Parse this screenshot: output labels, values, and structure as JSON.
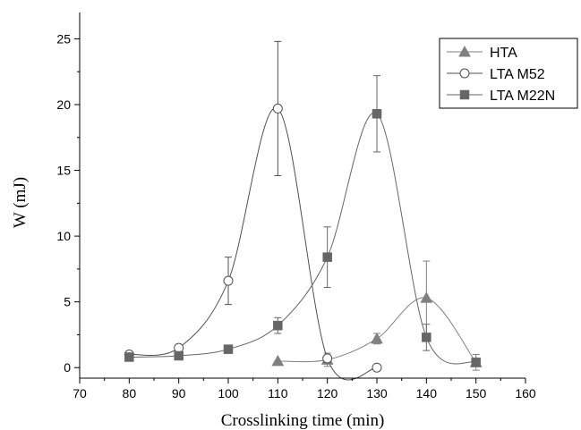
{
  "chart_data": {
    "type": "scatter",
    "title": "",
    "xlabel": "Crosslinking time (min)",
    "ylabel": "W (mJ)",
    "xlim": [
      70,
      160
    ],
    "ylim": [
      -0.8,
      27
    ],
    "xticks": [
      70,
      80,
      90,
      100,
      110,
      120,
      130,
      140,
      150,
      160
    ],
    "yticks": [
      0,
      5,
      10,
      15,
      20,
      25
    ],
    "grid": false,
    "legend_position": "top-right",
    "connector": "smooth spline",
    "series": [
      {
        "name": "HTA",
        "marker": "triangle",
        "color": "#808080",
        "x": [
          110,
          120,
          130,
          140,
          150
        ],
        "y": [
          0.5,
          0.6,
          2.2,
          5.3,
          0.4
        ],
        "err": [
          0,
          0.5,
          0.4,
          2.8,
          0.6
        ]
      },
      {
        "name": "LTA M52",
        "marker": "circle-open",
        "color": "#505050",
        "x": [
          80,
          90,
          100,
          110,
          120,
          130
        ],
        "y": [
          1.0,
          1.5,
          6.6,
          19.7,
          0.7,
          0.0
        ],
        "err": [
          0,
          0,
          1.8,
          5.1,
          0,
          0
        ]
      },
      {
        "name": "LTA M22N",
        "marker": "square",
        "color": "#666666",
        "x": [
          80,
          90,
          100,
          110,
          120,
          130,
          140,
          150
        ],
        "y": [
          0.8,
          0.9,
          1.4,
          3.2,
          8.4,
          19.3,
          2.3,
          0.4
        ],
        "err": [
          0,
          0,
          0,
          0.6,
          2.3,
          2.9,
          1.0,
          0
        ]
      }
    ]
  }
}
